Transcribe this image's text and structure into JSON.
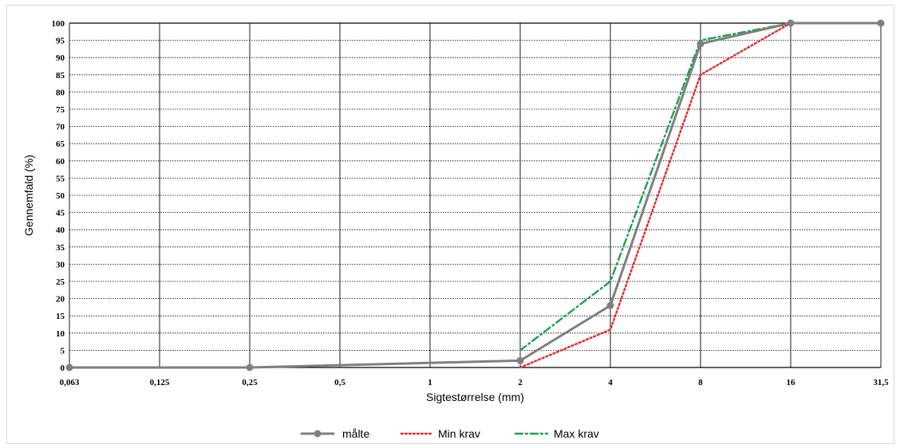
{
  "chart_data": {
    "type": "line",
    "title": "",
    "xlabel": "Sigtestørrelse (mm)",
    "ylabel": "Gennemfald (%)",
    "ylim": [
      0,
      100
    ],
    "y_ticks": [
      0,
      5,
      10,
      15,
      20,
      25,
      30,
      35,
      40,
      45,
      50,
      55,
      60,
      65,
      70,
      75,
      80,
      85,
      90,
      95,
      100
    ],
    "categories": [
      "0,063",
      "0,125",
      "0,25",
      "0,5",
      "1",
      "2",
      "4",
      "8",
      "16",
      "31,5"
    ],
    "grid": true,
    "legend_position": "bottom",
    "series": [
      {
        "name": "målte",
        "color": "#7f7f7f",
        "style": "solid-marker",
        "points": [
          [
            "0,063",
            0
          ],
          [
            "0,25",
            0
          ],
          [
            "2",
            2
          ],
          [
            "4",
            18
          ],
          [
            "8",
            94
          ],
          [
            "16",
            100
          ],
          [
            "31,5",
            100
          ]
        ]
      },
      {
        "name": "Min krav",
        "color": "#e8262a",
        "style": "dotted",
        "points": [
          [
            "2",
            0
          ],
          [
            "4",
            11
          ],
          [
            "8",
            85
          ],
          [
            "16",
            100
          ],
          [
            "31,5",
            100
          ]
        ]
      },
      {
        "name": "Max krav",
        "color": "#1aa34a",
        "style": "dash-dot",
        "points": [
          [
            "2",
            5
          ],
          [
            "4",
            25
          ],
          [
            "8",
            95
          ],
          [
            "16",
            100
          ],
          [
            "31,5",
            100
          ]
        ]
      }
    ]
  }
}
